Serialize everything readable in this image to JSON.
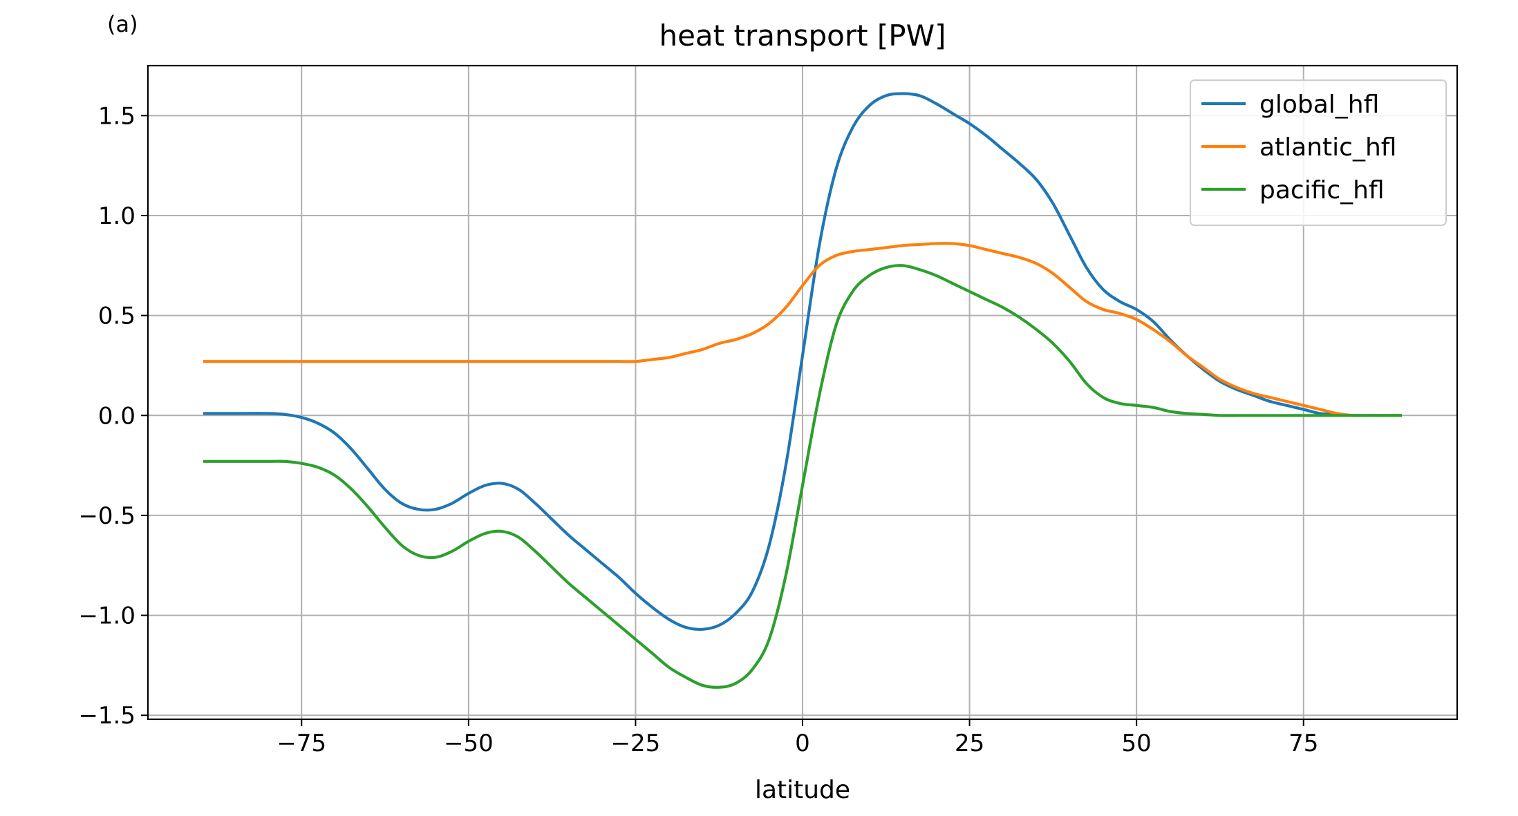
{
  "chart_data": {
    "type": "line",
    "panel_label": "(a)",
    "title": "heat transport [PW]",
    "xlabel": "latitude",
    "ylabel": "",
    "xlim": [
      -98,
      98
    ],
    "ylim": [
      -1.52,
      1.75
    ],
    "xticks": [
      -75,
      -50,
      -25,
      0,
      25,
      50,
      75
    ],
    "xtick_labels": [
      "−75",
      "−50",
      "−25",
      "0",
      "25",
      "50",
      "75"
    ],
    "yticks": [
      -1.5,
      -1.0,
      -0.5,
      0.0,
      0.5,
      1.0,
      1.5
    ],
    "ytick_labels": [
      "−1.5",
      "−1.0",
      "−0.5",
      "0.0",
      "0.5",
      "1.0",
      "1.5"
    ],
    "grid": true,
    "legend_position": "top-right",
    "x": [
      -89.5,
      -85,
      -80,
      -77.5,
      -75,
      -72.5,
      -70,
      -67.5,
      -65,
      -62.5,
      -60,
      -57.5,
      -55,
      -52.5,
      -50,
      -47.5,
      -45,
      -42.5,
      -40,
      -37.5,
      -35,
      -32.5,
      -30,
      -27.5,
      -25,
      -22.5,
      -20,
      -17.5,
      -15,
      -12.5,
      -10,
      -7.5,
      -5,
      -2.5,
      0,
      2.5,
      5,
      7.5,
      10,
      12.5,
      15,
      17.5,
      20,
      22.5,
      25,
      27.5,
      30,
      32.5,
      35,
      37.5,
      40,
      42.5,
      45,
      47.5,
      50,
      52.5,
      55,
      57.5,
      60,
      62.5,
      65,
      67.5,
      70,
      72.5,
      75,
      77.5,
      80,
      82.5,
      85,
      89.5
    ],
    "series": [
      {
        "name": "global_hfl",
        "color": "#1f77b4",
        "values": [
          0.01,
          0.01,
          0.01,
          0.005,
          -0.01,
          -0.04,
          -0.09,
          -0.17,
          -0.27,
          -0.37,
          -0.44,
          -0.47,
          -0.47,
          -0.44,
          -0.39,
          -0.35,
          -0.34,
          -0.37,
          -0.44,
          -0.52,
          -0.6,
          -0.67,
          -0.74,
          -0.81,
          -0.89,
          -0.96,
          -1.02,
          -1.06,
          -1.07,
          -1.05,
          -0.99,
          -0.88,
          -0.65,
          -0.25,
          0.3,
          0.85,
          1.23,
          1.44,
          1.55,
          1.6,
          1.61,
          1.6,
          1.56,
          1.51,
          1.46,
          1.4,
          1.33,
          1.26,
          1.18,
          1.06,
          0.9,
          0.74,
          0.63,
          0.57,
          0.53,
          0.47,
          0.38,
          0.3,
          0.23,
          0.17,
          0.13,
          0.1,
          0.07,
          0.05,
          0.03,
          0.01,
          0.005,
          0.0,
          0.0,
          0.0
        ]
      },
      {
        "name": "atlantic_hfl",
        "color": "#ff7f0e",
        "values": [
          0.27,
          0.27,
          0.27,
          0.27,
          0.27,
          0.27,
          0.27,
          0.27,
          0.27,
          0.27,
          0.27,
          0.27,
          0.27,
          0.27,
          0.27,
          0.27,
          0.27,
          0.27,
          0.27,
          0.27,
          0.27,
          0.27,
          0.27,
          0.27,
          0.27,
          0.28,
          0.29,
          0.31,
          0.33,
          0.36,
          0.38,
          0.41,
          0.46,
          0.54,
          0.65,
          0.75,
          0.8,
          0.82,
          0.83,
          0.84,
          0.85,
          0.855,
          0.86,
          0.86,
          0.85,
          0.83,
          0.81,
          0.79,
          0.76,
          0.71,
          0.64,
          0.57,
          0.53,
          0.51,
          0.48,
          0.43,
          0.37,
          0.3,
          0.24,
          0.18,
          0.14,
          0.11,
          0.09,
          0.07,
          0.05,
          0.03,
          0.01,
          0.0,
          0.0,
          0.0
        ]
      },
      {
        "name": "pacific_hfl",
        "color": "#2ca02c",
        "values": [
          -0.23,
          -0.23,
          -0.23,
          -0.23,
          -0.24,
          -0.26,
          -0.3,
          -0.37,
          -0.46,
          -0.56,
          -0.65,
          -0.7,
          -0.71,
          -0.68,
          -0.63,
          -0.59,
          -0.58,
          -0.61,
          -0.68,
          -0.76,
          -0.84,
          -0.91,
          -0.98,
          -1.05,
          -1.12,
          -1.19,
          -1.26,
          -1.31,
          -1.35,
          -1.36,
          -1.34,
          -1.27,
          -1.12,
          -0.8,
          -0.35,
          0.1,
          0.45,
          0.62,
          0.7,
          0.74,
          0.75,
          0.73,
          0.7,
          0.66,
          0.62,
          0.58,
          0.54,
          0.49,
          0.43,
          0.36,
          0.27,
          0.16,
          0.09,
          0.06,
          0.05,
          0.04,
          0.02,
          0.01,
          0.005,
          0.0,
          0.0,
          0.0,
          0.0,
          0.0,
          0.0,
          0.0,
          0.0,
          0.0,
          0.0,
          0.0
        ]
      }
    ]
  }
}
